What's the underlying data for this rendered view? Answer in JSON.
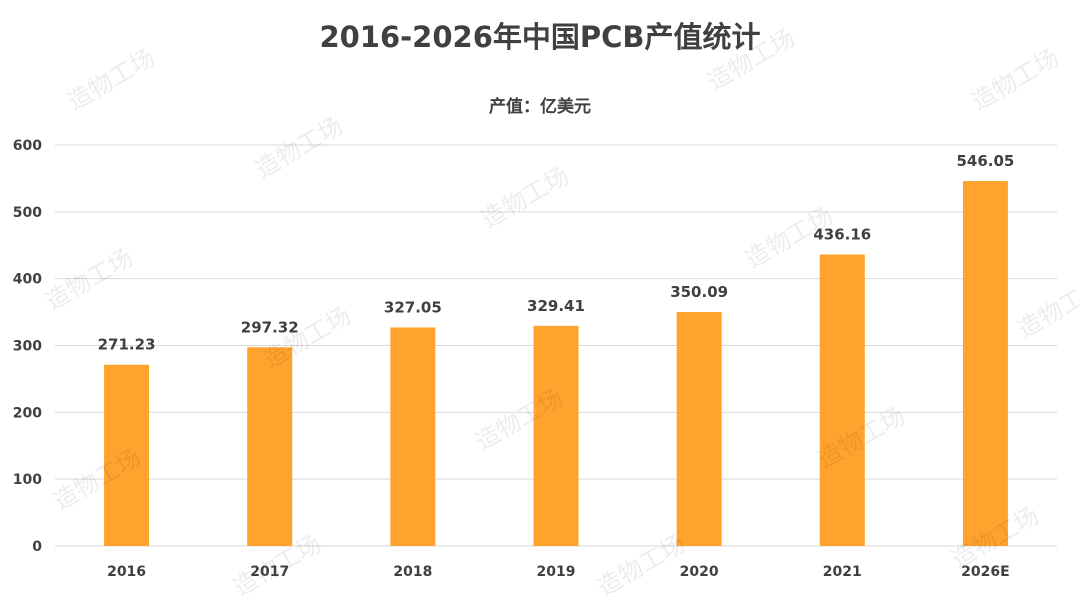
{
  "chart_data": {
    "type": "bar",
    "title": "2016-2026年中国PCB产值统计",
    "subtitle": "产值：亿美元",
    "categories": [
      "2016",
      "2017",
      "2018",
      "2019",
      "2020",
      "2021",
      "2026E"
    ],
    "values": [
      271.23,
      297.32,
      327.05,
      329.41,
      350.09,
      436.16,
      546.05
    ],
    "data_labels": [
      "271.23",
      "297.32",
      "327.05",
      "329.41",
      "350.09",
      "436.16",
      "546.05"
    ],
    "xlabel": "",
    "ylabel": "",
    "ylim": [
      0,
      600
    ],
    "yticks": [
      0,
      100,
      200,
      300,
      400,
      500,
      600
    ],
    "grid": true,
    "legend": "none",
    "bar_color": "#FFA32E"
  },
  "watermark": {
    "text": "造物工场"
  }
}
